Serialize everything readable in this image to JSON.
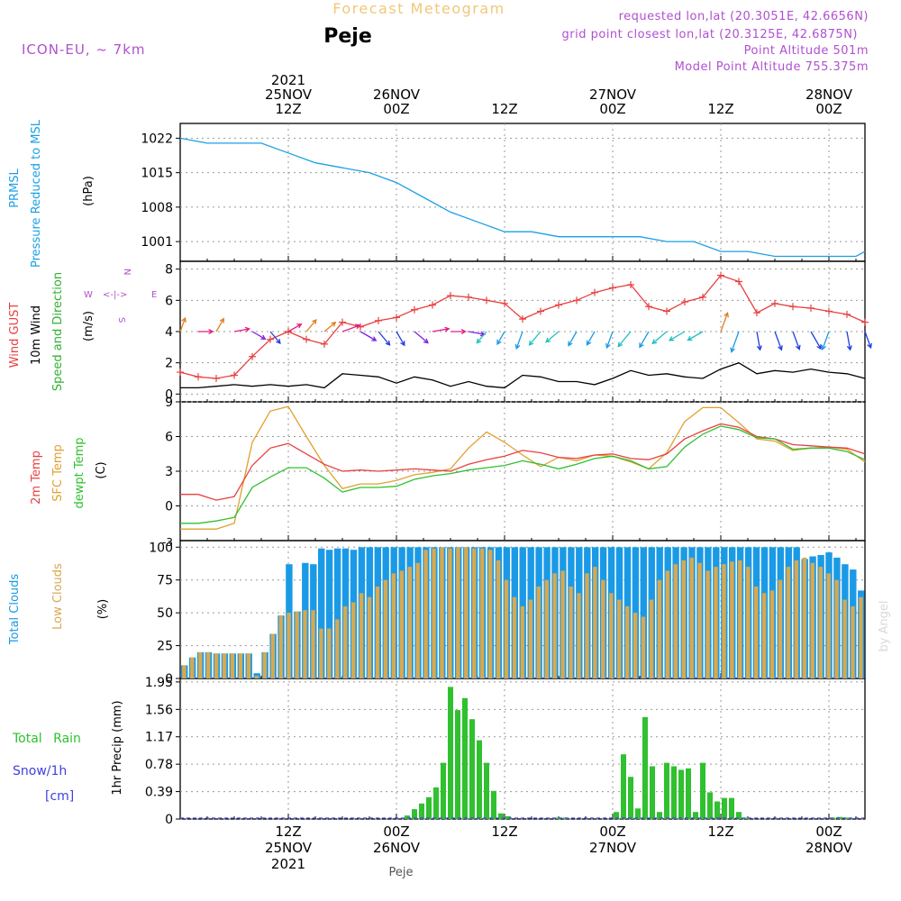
{
  "header": {
    "title": "Forecast Meteogram",
    "location": "Peje",
    "model": "ICON-EU, ~ 7km",
    "requested": "requested lon,lat (20.3051E, 42.6656N)",
    "gridpoint": "grid point closest lon,lat (20.3125E, 42.6875N)",
    "altitude": "Point Altitude 501m",
    "model_altitude": "Model Point Altitude 755.375m",
    "footer": "Peje",
    "watermark": "by Angel"
  },
  "colors": {
    "pressure": "#1aa0e6",
    "gust": "#e84040",
    "wind": "#000000",
    "temp2m": "#e84040",
    "sfc": "#e0a030",
    "dewpt": "#30c030",
    "total_clouds": "#1a9ae6",
    "low_clouds": "#d8a850",
    "rain": "#30c030",
    "snow": "#4040e0",
    "purple": "#b050d0"
  },
  "time_axis": {
    "top": [
      {
        "t": 12,
        "l1": "2021",
        "l2": "25NOV",
        "l3": "12Z"
      },
      {
        "t": 24,
        "l1": "",
        "l2": "26NOV",
        "l3": "00Z"
      },
      {
        "t": 36,
        "l1": "",
        "l2": "",
        "l3": "12Z"
      },
      {
        "t": 48,
        "l1": "",
        "l2": "27NOV",
        "l3": "00Z"
      },
      {
        "t": 60,
        "l1": "",
        "l2": "",
        "l3": "12Z"
      },
      {
        "t": 72,
        "l1": "",
        "l2": "28NOV",
        "l3": "00Z"
      }
    ],
    "bottom": [
      {
        "t": 12,
        "l1": "12Z",
        "l2": "25NOV",
        "l3": "2021"
      },
      {
        "t": 24,
        "l1": "00Z",
        "l2": "26NOV",
        "l3": ""
      },
      {
        "t": 36,
        "l1": "12Z",
        "l2": "",
        "l3": ""
      },
      {
        "t": 48,
        "l1": "00Z",
        "l2": "27NOV",
        "l3": ""
      },
      {
        "t": 60,
        "l1": "12Z",
        "l2": "",
        "l3": ""
      },
      {
        "t": 72,
        "l1": "00Z",
        "l2": "28NOV",
        "l3": ""
      }
    ]
  },
  "panels": {
    "pressure": {
      "label1": "PRMSL",
      "label2": "Pressure Reduced to MSL",
      "unit": "(hPa)"
    },
    "wind": {
      "label_gust": "Wind GUST",
      "label_wind": "10m Wind",
      "label_dir": "Speed and Direction",
      "unit": "(m/s)",
      "compass_w": "W",
      "compass_e": "E",
      "compass_n": "N",
      "compass_s": "S"
    },
    "temp": {
      "label_2m": "2m Temp",
      "label_sfc": "SFC Temp",
      "label_dew": "dewpt Temp",
      "unit": "(C)"
    },
    "clouds": {
      "label_total": "Total Clouds",
      "label_low": "Low Clouds",
      "unit": "(%)"
    },
    "precip": {
      "label_rain": "Total Rain",
      "label_snow": "Snow/1h",
      "label_cm": "[cm]",
      "unit": "1hr Precip (mm)"
    }
  },
  "chart_data": [
    {
      "type": "line",
      "name": "pressure",
      "ylim": [
        997,
        1025
      ],
      "yticks": [
        "1001",
        "1008",
        "1015",
        "1022"
      ],
      "x": [
        0,
        3,
        6,
        9,
        12,
        15,
        18,
        21,
        24,
        27,
        30,
        33,
        36,
        39,
        42,
        45,
        48,
        51,
        54,
        57,
        60,
        63,
        66,
        69,
        72,
        75,
        76
      ],
      "series": [
        {
          "values": [
            1022,
            1021,
            1021,
            1021,
            1019,
            1017,
            1016,
            1015,
            1013,
            1010,
            1007,
            1005,
            1003,
            1003,
            1002,
            1002,
            1002,
            1002,
            1001,
            1001,
            999,
            999,
            998,
            998,
            998,
            998,
            999
          ]
        }
      ]
    },
    {
      "type": "line",
      "name": "wind",
      "ylim": [
        -0.5,
        8.5
      ],
      "yticks": [
        "0",
        "2",
        "4",
        "6",
        "8"
      ],
      "x": [
        0,
        2,
        4,
        6,
        8,
        10,
        12,
        14,
        16,
        18,
        20,
        22,
        24,
        26,
        28,
        30,
        32,
        34,
        36,
        38,
        40,
        42,
        44,
        46,
        48,
        50,
        52,
        54,
        56,
        58,
        60,
        62,
        64,
        66,
        68,
        70,
        72,
        74,
        76
      ],
      "series": [
        {
          "values": [
            0.4,
            0.4,
            0.5,
            0.6,
            0.5,
            0.6,
            0.5,
            0.6,
            0.4,
            1.3,
            1.2,
            1.1,
            0.7,
            1.1,
            0.9,
            0.5,
            0.8,
            0.5,
            0.4,
            1.2,
            1.1,
            0.8,
            0.8,
            0.6,
            1.0,
            1.5,
            1.2,
            1.3,
            1.1,
            1.0,
            1.6,
            2.0,
            1.3,
            1.5,
            1.4,
            1.6,
            1.4,
            1.3,
            1.0
          ]
        },
        {
          "values": [
            1.4,
            1.1,
            1.0,
            1.2,
            2.4,
            3.5,
            4.0,
            3.5,
            3.2,
            4.6,
            4.3,
            4.7,
            4.9,
            5.4,
            5.7,
            6.3,
            6.2,
            6.0,
            5.8,
            4.8,
            5.3,
            5.7,
            6.0,
            6.5,
            6.8,
            7.0,
            5.6,
            5.3,
            5.9,
            6.2,
            7.6,
            7.2,
            5.2,
            5.8,
            5.6,
            5.5,
            5.3,
            5.1,
            4.6
          ]
        }
      ],
      "arrow_dirs": [
        200,
        270,
        210,
        260,
        300,
        320,
        240,
        220,
        230,
        250,
        300,
        320,
        330,
        310,
        260,
        270,
        280,
        40,
        30,
        20,
        40,
        50,
        30,
        30,
        20,
        40,
        30,
        50,
        60,
        60,
        200,
        20,
        350,
        340,
        340,
        330,
        20,
        350,
        340
      ]
    },
    {
      "type": "line",
      "name": "temperature",
      "ylim": [
        -3,
        9
      ],
      "yticks": [
        "0",
        "3",
        "6",
        "9"
      ],
      "x": [
        0,
        2,
        4,
        6,
        8,
        10,
        12,
        14,
        16,
        18,
        20,
        22,
        24,
        26,
        28,
        30,
        32,
        34,
        36,
        38,
        40,
        42,
        44,
        46,
        48,
        50,
        52,
        54,
        56,
        58,
        60,
        62,
        64,
        66,
        68,
        70,
        72,
        74,
        76
      ],
      "series": [
        {
          "values": [
            1.0,
            1.0,
            0.5,
            0.8,
            3.5,
            5.0,
            5.4,
            4.5,
            3.6,
            3.0,
            3.1,
            3.0,
            3.1,
            3.2,
            3.1,
            3.0,
            3.6,
            4.0,
            4.3,
            4.8,
            4.6,
            4.2,
            4.1,
            4.4,
            4.5,
            4.1,
            4.0,
            4.5,
            5.8,
            6.5,
            7.1,
            6.8,
            6.0,
            5.8,
            5.3,
            5.2,
            5.1,
            5.0,
            4.5
          ]
        },
        {
          "values": [
            -2.0,
            -2.0,
            -2.0,
            -1.5,
            5.5,
            8.2,
            8.6,
            6.0,
            3.5,
            1.5,
            1.9,
            1.9,
            2.2,
            2.7,
            2.9,
            3.2,
            5.0,
            6.4,
            5.5,
            4.4,
            3.4,
            4.2,
            3.9,
            4.4,
            4.3,
            3.8,
            3.2,
            4.6,
            7.3,
            8.5,
            8.5,
            7.2,
            5.8,
            5.6,
            4.8,
            5.0,
            5.1,
            4.9,
            3.8
          ]
        },
        {
          "values": [
            -1.5,
            -1.5,
            -1.3,
            -1.0,
            1.6,
            2.5,
            3.3,
            3.3,
            2.4,
            1.2,
            1.6,
            1.6,
            1.7,
            2.3,
            2.6,
            2.8,
            3.1,
            3.3,
            3.5,
            3.9,
            3.6,
            3.2,
            3.6,
            4.1,
            4.3,
            3.9,
            3.2,
            3.4,
            5.1,
            6.2,
            6.9,
            6.6,
            5.9,
            5.8,
            4.9,
            5.0,
            5.0,
            4.7,
            4.0
          ]
        }
      ]
    },
    {
      "type": "bar",
      "name": "clouds",
      "ylim": [
        0,
        105
      ],
      "yticks": [
        "0",
        "25",
        "50",
        "75",
        "100"
      ],
      "series": [
        {
          "values": [
            10,
            16,
            20,
            20,
            19,
            19,
            19,
            19,
            19,
            4,
            20,
            34,
            48,
            87,
            51,
            88,
            87,
            99,
            98,
            99,
            99,
            98,
            100,
            100,
            100,
            100,
            100,
            100,
            100,
            100,
            100,
            100,
            100,
            100,
            100,
            100,
            100,
            100,
            100,
            100,
            100,
            100,
            100,
            100,
            100,
            100,
            100,
            100,
            100,
            100,
            100,
            100,
            100,
            100,
            100,
            100,
            100,
            100,
            100,
            100,
            100,
            100,
            100,
            100,
            100,
            100,
            100,
            100,
            100,
            100,
            100,
            100,
            100,
            100,
            100,
            100,
            100,
            91,
            93,
            94,
            96,
            92,
            87,
            83,
            67
          ]
        },
        {
          "values": [
            10,
            16,
            20,
            20,
            19,
            19,
            19,
            19,
            19,
            2,
            20,
            34,
            48,
            50,
            51,
            52,
            52,
            38,
            38,
            45,
            55,
            58,
            65,
            62,
            70,
            75,
            80,
            82,
            85,
            88,
            98,
            99,
            100,
            99,
            100,
            100,
            99,
            99,
            98,
            90,
            75,
            62,
            55,
            60,
            70,
            75,
            80,
            82,
            70,
            65,
            80,
            85,
            75,
            65,
            60,
            55,
            50,
            47,
            60,
            75,
            82,
            87,
            90,
            92,
            88,
            82,
            85,
            87,
            89,
            90,
            85,
            70,
            65,
            67,
            75,
            85,
            90,
            92,
            88,
            85,
            80,
            75,
            60,
            55,
            62
          ]
        }
      ]
    },
    {
      "type": "bar",
      "name": "precip",
      "ylim": [
        0,
        2.0
      ],
      "yticks": [
        "0",
        "0.39",
        "0.78",
        "1.17",
        "1.56",
        "1.95"
      ],
      "series": [
        {
          "values": [
            0,
            0,
            0,
            0,
            0,
            0,
            0,
            0,
            0,
            0,
            0,
            0,
            0,
            0,
            0,
            0,
            0,
            0,
            0,
            0,
            0,
            0,
            0,
            0,
            0,
            0,
            0,
            0,
            0,
            0,
            0,
            0.05,
            0.14,
            0.22,
            0.31,
            0.45,
            0.8,
            1.88,
            1.55,
            1.72,
            1.42,
            1.12,
            0.8,
            0.4,
            0.08,
            0.04,
            0,
            0,
            0,
            0,
            0,
            0,
            0.02,
            0.02,
            0,
            0,
            0,
            0,
            0,
            0,
            0.1,
            0.92,
            0.6,
            0.15,
            1.45,
            0.75,
            0.1,
            0.8,
            0.75,
            0.7,
            0.72,
            0.1,
            0.8,
            0.38,
            0.25,
            0.3,
            0.3,
            0.1,
            0.02,
            0,
            0,
            0,
            0,
            0,
            0,
            0,
            0,
            0,
            0,
            0,
            0.02,
            0.03,
            0.02,
            0,
            0
          ]
        }
      ]
    }
  ]
}
